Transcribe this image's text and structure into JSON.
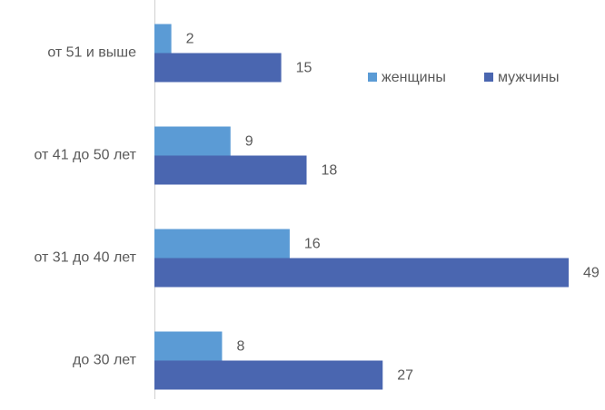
{
  "chart_data": {
    "type": "bar",
    "orientation": "horizontal",
    "categories": [
      "от 51 и выше",
      "от 41 до 50 лет",
      "от 31 до 40 лет",
      "до 30 лет"
    ],
    "series": [
      {
        "name": "женщины",
        "color": "#5b9bd5",
        "values": [
          2,
          9,
          16,
          8
        ]
      },
      {
        "name": "мужчины",
        "color": "#4a66b0",
        "values": [
          15,
          18,
          49,
          27
        ]
      }
    ],
    "legend": "top-right"
  }
}
